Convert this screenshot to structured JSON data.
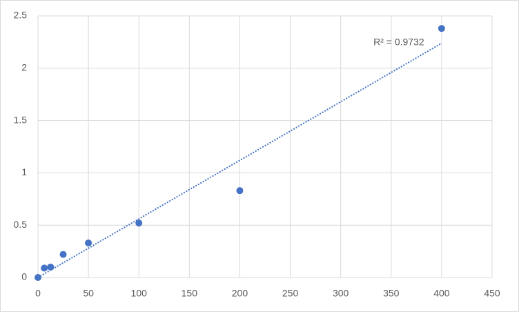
{
  "chart_data": {
    "type": "scatter",
    "x": [
      0,
      6.25,
      12.5,
      25,
      50,
      100,
      200,
      400
    ],
    "series": [
      {
        "color": "#4472c4",
        "values": [
          0,
          0.09,
          0.1,
          0.22,
          0.33,
          0.52,
          0.83,
          2.38
        ]
      }
    ],
    "xlim": [
      0,
      450
    ],
    "xticks": [
      0,
      50,
      100,
      150,
      200,
      250,
      300,
      350,
      400,
      450
    ],
    "ylim": [
      0,
      2.5
    ],
    "yticks": [
      0,
      0.5,
      1,
      1.5,
      2,
      2.5
    ],
    "grid": true,
    "trendline": {
      "type": "linear",
      "through_origin": true,
      "style": "dotted",
      "label": "R² = 0.9732"
    }
  }
}
